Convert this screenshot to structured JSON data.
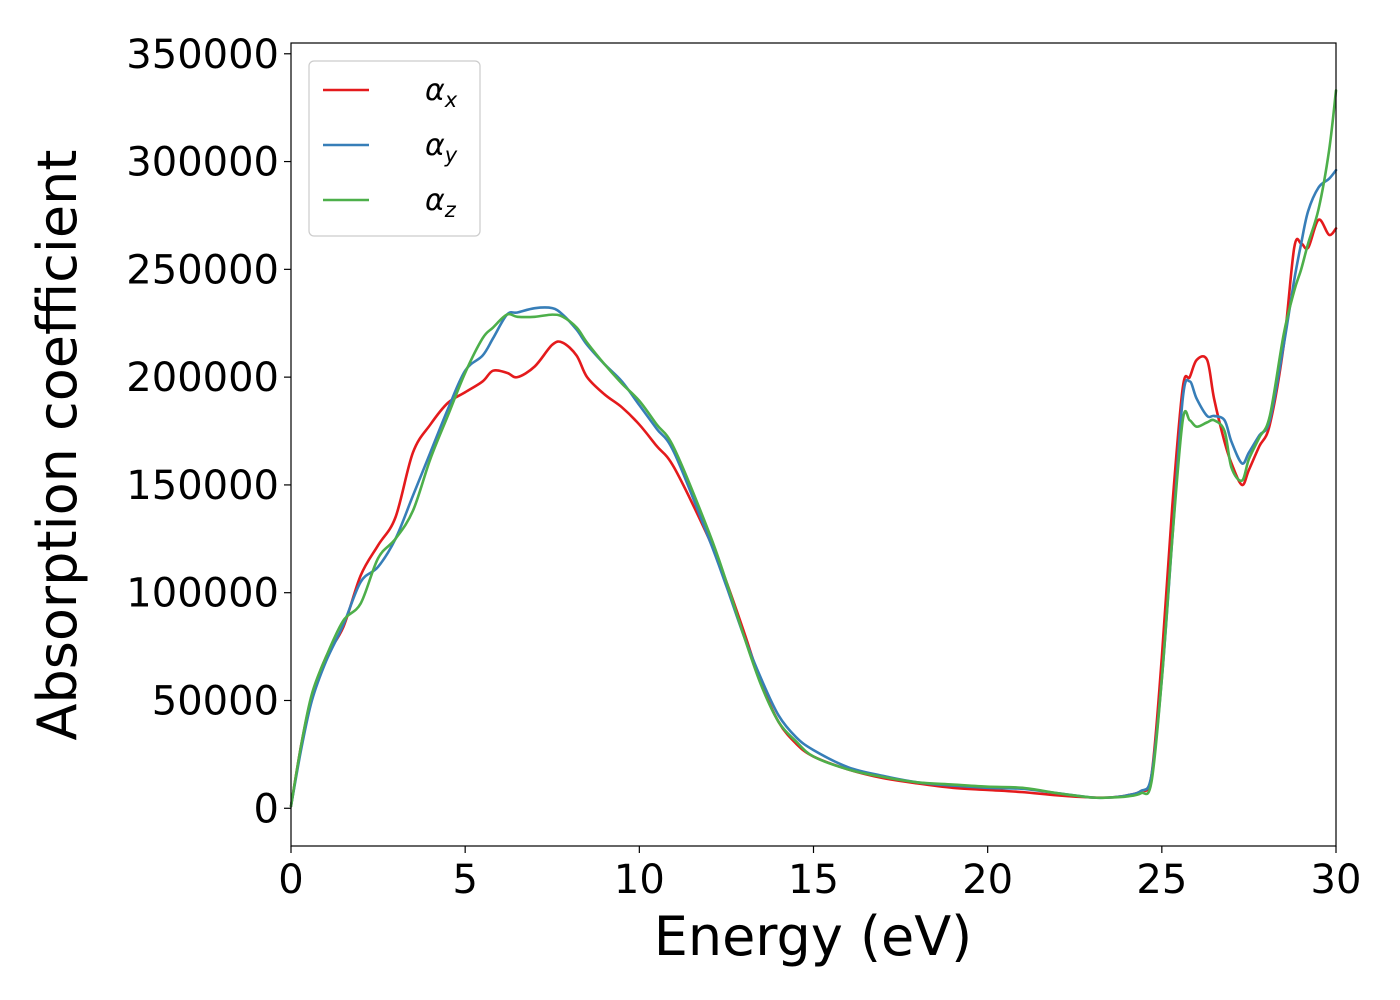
{
  "chart_data": {
    "type": "line",
    "xlabel": "Energy (eV)",
    "ylabel": "Absorption coefficient",
    "xlim": [
      0,
      30
    ],
    "ylim": [
      -17500,
      355000
    ],
    "xticks": [
      0,
      5,
      10,
      15,
      20,
      25,
      30
    ],
    "xtick_labels": [
      "0",
      "5",
      "10",
      "15",
      "20",
      "25",
      "30"
    ],
    "yticks": [
      0,
      50000,
      100000,
      150000,
      200000,
      250000,
      300000,
      350000
    ],
    "ytick_labels": [
      "0",
      "50000",
      "100000",
      "150000",
      "200000",
      "250000",
      "300000",
      "350000"
    ],
    "grid": false,
    "legend_position": "top-left",
    "series": [
      {
        "name": "α_x",
        "label_main": "α",
        "label_sub": "x",
        "color": "#e41a1c",
        "x": [
          0,
          0.3,
          0.6,
          1.0,
          1.5,
          2.0,
          2.5,
          3.0,
          3.5,
          4.0,
          4.5,
          5.0,
          5.5,
          5.8,
          6.2,
          6.5,
          7.0,
          7.5,
          7.8,
          8.2,
          8.5,
          9.0,
          9.5,
          10.0,
          10.5,
          11.0,
          12.0,
          12.5,
          13.0,
          13.5,
          14.0,
          14.5,
          15.0,
          16.0,
          17.0,
          18.0,
          19.0,
          20.0,
          21.0,
          22.0,
          23.0,
          23.5,
          24.0,
          24.4,
          24.7,
          25.0,
          25.3,
          25.6,
          25.8,
          26.0,
          26.3,
          26.5,
          26.8,
          27.0,
          27.3,
          27.5,
          27.8,
          28.1,
          28.5,
          28.8,
          29.0,
          29.2,
          29.5,
          29.8,
          30.0
        ],
        "y": [
          1000,
          30000,
          52000,
          70000,
          84000,
          108000,
          122000,
          135000,
          165000,
          178000,
          188000,
          193000,
          198000,
          203000,
          202000,
          200000,
          205000,
          215000,
          216000,
          210000,
          200000,
          192000,
          186000,
          178000,
          168000,
          158000,
          125000,
          105000,
          82000,
          58000,
          40000,
          30000,
          24000,
          18000,
          14000,
          11500,
          9500,
          8500,
          7500,
          6000,
          5000,
          5000,
          6000,
          8000,
          15000,
          70000,
          140000,
          195000,
          200000,
          208000,
          208000,
          190000,
          170000,
          160000,
          150000,
          157000,
          168000,
          178000,
          215000,
          260000,
          262000,
          260000,
          273000,
          266000,
          269000
        ]
      },
      {
        "name": "α_y",
        "label_main": "α",
        "label_sub": "y",
        "color": "#377eb8",
        "x": [
          0,
          0.3,
          0.6,
          1.0,
          1.5,
          2.0,
          2.5,
          3.0,
          3.5,
          4.0,
          4.5,
          5.0,
          5.5,
          5.8,
          6.2,
          6.5,
          7.0,
          7.5,
          7.8,
          8.2,
          8.5,
          9.0,
          9.5,
          10.0,
          10.5,
          11.0,
          12.0,
          12.5,
          13.0,
          13.5,
          14.0,
          14.5,
          15.0,
          16.0,
          17.0,
          18.0,
          19.0,
          20.0,
          21.0,
          22.0,
          23.0,
          23.5,
          24.0,
          24.4,
          24.7,
          25.0,
          25.3,
          25.6,
          25.8,
          26.0,
          26.3,
          26.5,
          26.8,
          27.0,
          27.3,
          27.5,
          27.8,
          28.1,
          28.5,
          28.8,
          29.0,
          29.2,
          29.5,
          29.8,
          30.0
        ],
        "y": [
          1000,
          28000,
          50000,
          68000,
          85000,
          105000,
          112000,
          125000,
          145000,
          165000,
          185000,
          203000,
          210000,
          218000,
          229000,
          230000,
          232000,
          232000,
          229000,
          222000,
          215000,
          206000,
          198000,
          187000,
          176000,
          165000,
          125000,
          103000,
          80000,
          60000,
          43000,
          33000,
          27000,
          19000,
          15000,
          12000,
          10500,
          9500,
          9000,
          7000,
          5000,
          5000,
          6000,
          8000,
          15000,
          60000,
          125000,
          190000,
          198000,
          190000,
          182000,
          182000,
          180000,
          170000,
          160000,
          165000,
          173000,
          180000,
          215000,
          245000,
          262000,
          277000,
          288000,
          292000,
          296000
        ]
      },
      {
        "name": "α_z",
        "label_main": "α",
        "label_sub": "z",
        "color": "#4daf4a",
        "x": [
          0,
          0.3,
          0.6,
          1.0,
          1.5,
          2.0,
          2.5,
          3.0,
          3.5,
          4.0,
          4.5,
          5.0,
          5.5,
          5.8,
          6.2,
          6.5,
          7.0,
          7.5,
          7.8,
          8.2,
          8.5,
          9.0,
          9.5,
          10.0,
          10.5,
          11.0,
          12.0,
          12.5,
          13.0,
          13.5,
          14.0,
          14.5,
          15.0,
          16.0,
          17.0,
          18.0,
          19.0,
          20.0,
          21.0,
          22.0,
          23.0,
          23.5,
          24.0,
          24.4,
          24.7,
          25.0,
          25.3,
          25.6,
          25.8,
          26.0,
          26.3,
          26.5,
          26.8,
          27.0,
          27.3,
          27.5,
          27.8,
          28.1,
          28.5,
          28.8,
          29.0,
          29.2,
          29.5,
          29.8,
          30.0
        ],
        "y": [
          1000,
          30000,
          53000,
          70000,
          87000,
          95000,
          116000,
          125000,
          138000,
          162000,
          182000,
          202000,
          218000,
          223000,
          229000,
          228000,
          228000,
          229000,
          228000,
          223000,
          216000,
          206000,
          197000,
          189000,
          178000,
          167000,
          128000,
          105000,
          80000,
          57000,
          40000,
          31000,
          24000,
          18000,
          14500,
          12000,
          11000,
          10000,
          9500,
          7000,
          5000,
          5000,
          5500,
          7000,
          12000,
          60000,
          125000,
          180000,
          180000,
          177000,
          179000,
          180000,
          175000,
          158000,
          152000,
          162000,
          172000,
          182000,
          220000,
          240000,
          250000,
          262000,
          278000,
          305000,
          333000
        ]
      }
    ]
  }
}
